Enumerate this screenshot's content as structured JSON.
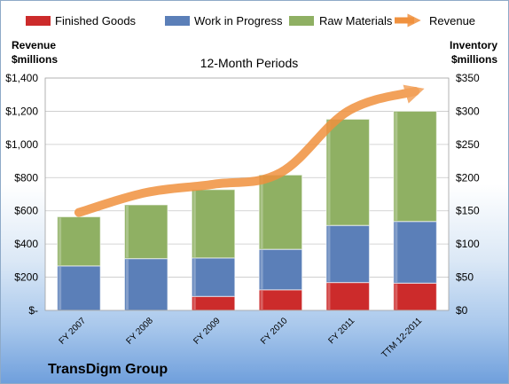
{
  "chart_data": {
    "type": "bar",
    "stacked": true,
    "company": "TransDigm Group",
    "subtitle": "12-Month Periods",
    "categories": [
      "FY 2007",
      "FY 2008",
      "FY 2009",
      "FY 2010",
      "FY 2011",
      "TTM 12-2011"
    ],
    "series": [
      {
        "name": "Finished Goods",
        "axis": "right",
        "color": "#cc2b2b",
        "values": [
          0,
          0,
          21,
          31,
          42,
          41
        ]
      },
      {
        "name": "Work in Progress",
        "axis": "right",
        "color": "#5b7fb8",
        "values": [
          67,
          78,
          58,
          61,
          86,
          93
        ]
      },
      {
        "name": "Raw Materials",
        "axis": "right",
        "color": "#8fb063",
        "values": [
          74,
          81,
          103,
          112,
          160,
          166
        ]
      },
      {
        "name": "Revenue",
        "axis": "left",
        "type": "line",
        "color": "#f0913e",
        "values": [
          590,
          710,
          760,
          830,
          1200,
          1320
        ]
      }
    ],
    "y_left": {
      "label_line1": "Revenue",
      "label_line2": "$millions",
      "min": 0,
      "max": 1400,
      "ticks": [
        1400,
        1200,
        1000,
        800,
        600,
        400,
        200,
        0
      ],
      "tick_labels": [
        "$1,400",
        "$1,200",
        "$1,000",
        "$800",
        "$600",
        "$400",
        "$200",
        "$-"
      ]
    },
    "y_right": {
      "label_line1": "Inventory",
      "label_line2": "$millions",
      "min": 0,
      "max": 350,
      "ticks": [
        350,
        300,
        250,
        200,
        150,
        100,
        50,
        0
      ],
      "tick_labels": [
        "$350",
        "$300",
        "$250",
        "$200",
        "$150",
        "$100",
        "$50",
        "$0"
      ]
    },
    "grid": true,
    "legend_position": "top"
  }
}
